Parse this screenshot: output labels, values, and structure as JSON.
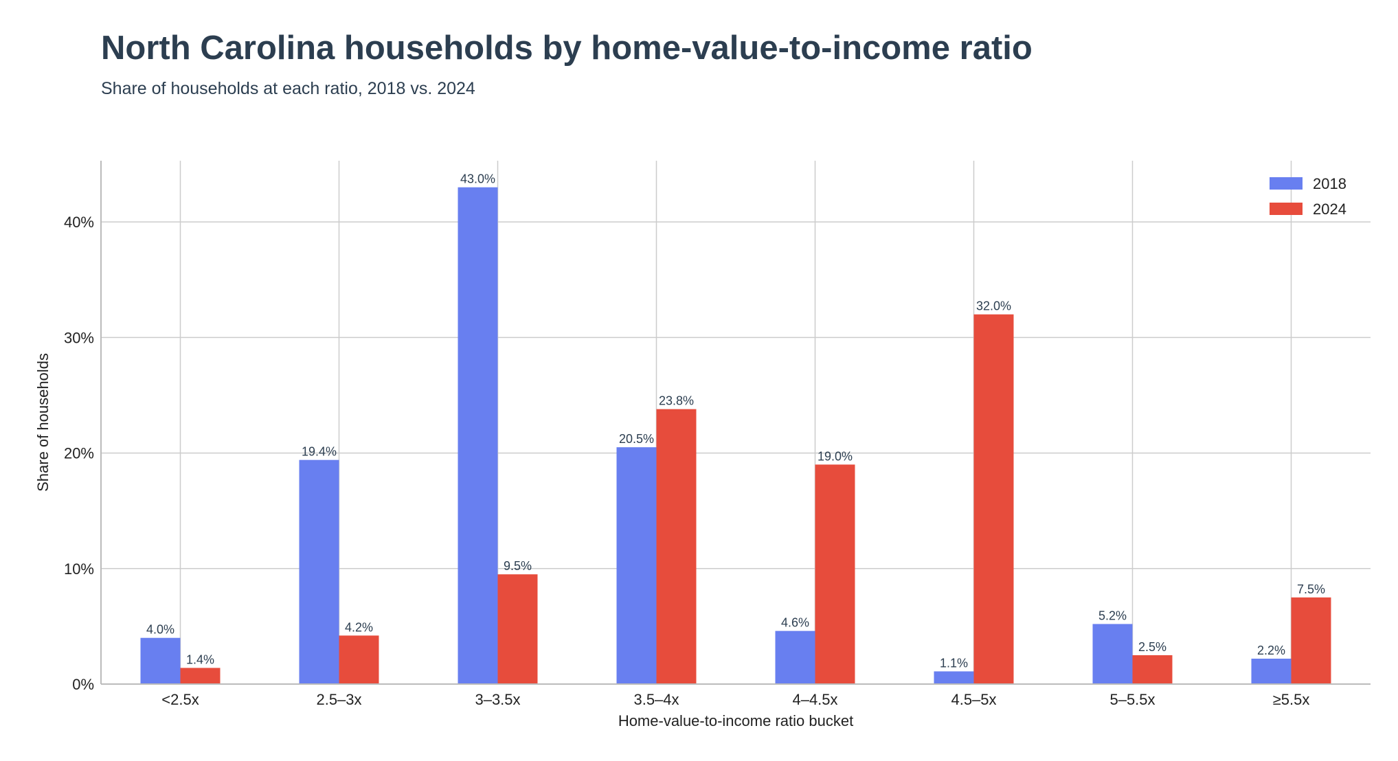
{
  "chart_data": {
    "type": "bar",
    "title": "North Carolina households by home-value-to-income ratio",
    "subtitle": "Share of households at each ratio, 2018 vs. 2024",
    "xlabel": "Home-value-to-income ratio bucket",
    "ylabel": "Share of households",
    "categories": [
      "<2.5x",
      "2.5–3x",
      "3–3.5x",
      "3.5–4x",
      "4–4.5x",
      "4.5–5x",
      "5–5.5x",
      "≥5.5x"
    ],
    "series": [
      {
        "name": "2018",
        "color": "#687ff0",
        "values": [
          4.0,
          19.4,
          43.0,
          20.5,
          4.6,
          1.1,
          5.2,
          2.2
        ]
      },
      {
        "name": "2024",
        "color": "#e74c3c",
        "values": [
          1.4,
          4.2,
          9.5,
          23.8,
          19.0,
          32.0,
          2.5,
          7.5
        ]
      }
    ],
    "ylim": [
      0,
      45.3
    ],
    "yticks": [
      0,
      10,
      20,
      30,
      40
    ],
    "ytick_labels": [
      "0%",
      "10%",
      "20%",
      "30%",
      "40%"
    ],
    "value_suffix": "%",
    "grid": true,
    "legend_position": "top-right"
  }
}
